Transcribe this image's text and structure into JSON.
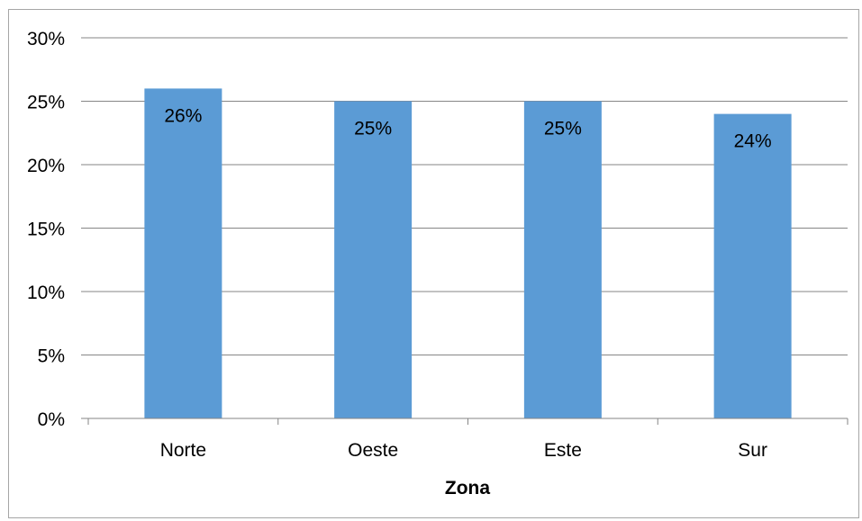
{
  "chart_data": {
    "type": "bar",
    "categories": [
      "Norte",
      "Oeste",
      "Este",
      "Sur"
    ],
    "values": [
      26,
      25,
      25,
      24
    ],
    "data_labels": [
      "26%",
      "25%",
      "25%",
      "24%"
    ],
    "title": "",
    "xlabel": "Zona",
    "ylabel": "",
    "ylim": [
      0,
      30
    ],
    "yticks": [
      0,
      5,
      10,
      15,
      20,
      25,
      30
    ],
    "ytick_labels": [
      "0%",
      "5%",
      "10%",
      "15%",
      "20%",
      "25%",
      "30%"
    ],
    "grid": true,
    "legend": "none",
    "bar_color": "#5b9bd5",
    "grid_color": "#868686",
    "axis_color": "#868686"
  }
}
